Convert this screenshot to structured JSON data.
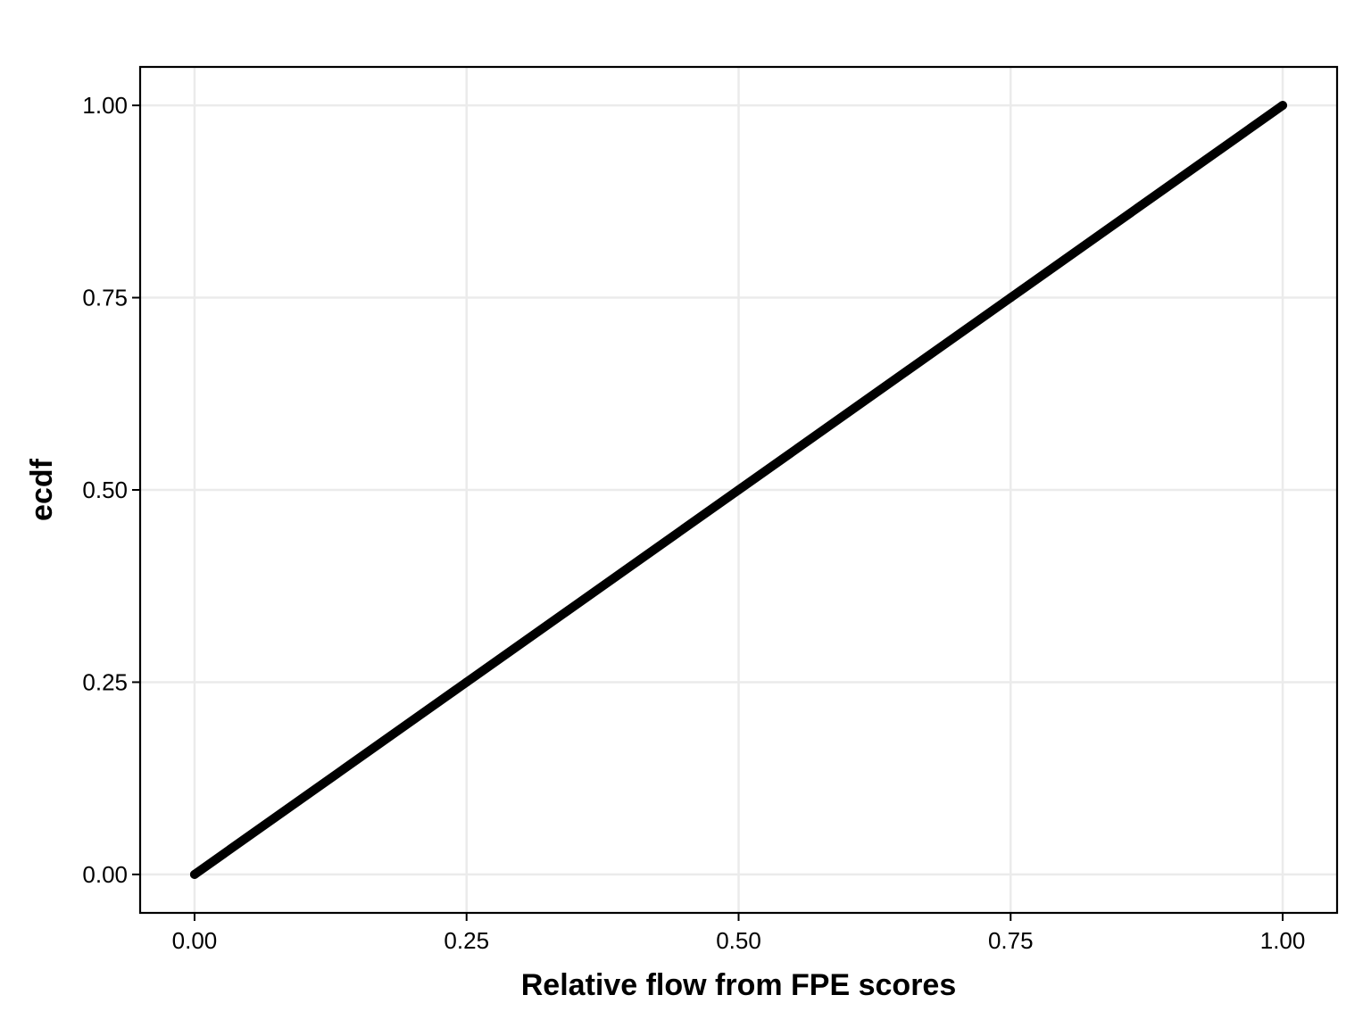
{
  "chart_data": {
    "type": "line",
    "xlabel": "Relative flow from FPE scores",
    "ylabel": "ecdf",
    "xlim": [
      -0.05,
      1.05
    ],
    "ylim": [
      -0.05,
      1.05
    ],
    "x_ticks": [
      0,
      0.25,
      0.5,
      0.75,
      1
    ],
    "x_tick_labels": [
      "0.00",
      "0.25",
      "0.50",
      "0.75",
      "1.00"
    ],
    "y_ticks": [
      0,
      0.25,
      0.5,
      0.75,
      1
    ],
    "y_tick_labels": [
      "0.00",
      "0.25",
      "0.50",
      "0.75",
      "1.00"
    ],
    "grid": true,
    "series": [
      {
        "color": "#000000",
        "x": [
          0,
          0.25,
          0.5,
          0.75,
          1
        ],
        "y": [
          0,
          0.25,
          0.5,
          0.75,
          1
        ]
      }
    ]
  }
}
